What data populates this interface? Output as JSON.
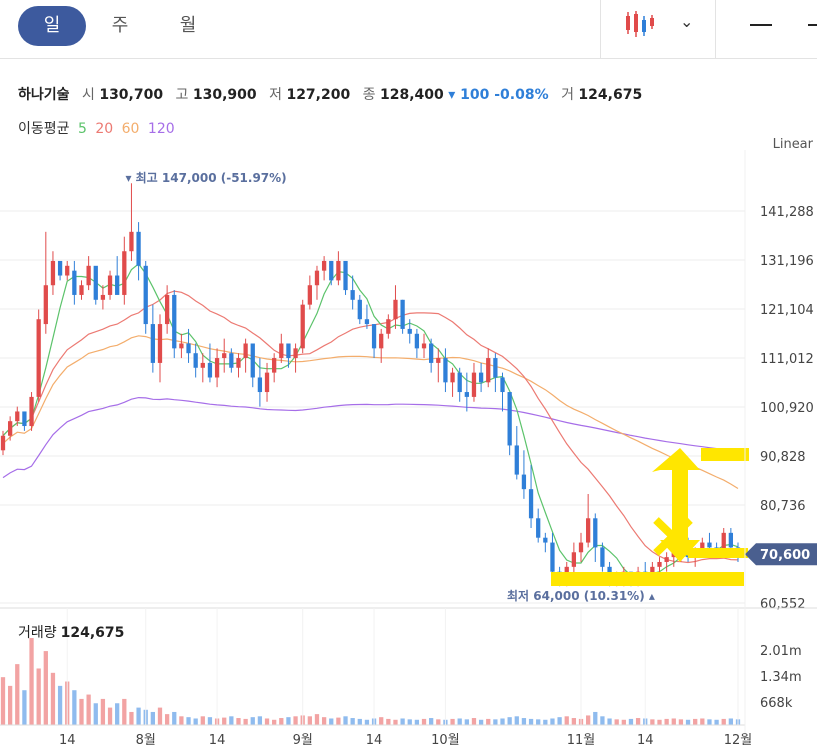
{
  "tabs": {
    "day": "일",
    "week": "주",
    "month": "월"
  },
  "stock": {
    "name": "하나기술",
    "open_label": "시",
    "open": "130,700",
    "high_label": "고",
    "high": "130,900",
    "low_label": "저",
    "low": "127,200",
    "close_label": "종",
    "close": "128,400",
    "change": "▾ 100 -0.08%",
    "volume_label": "거",
    "volume": "124,675"
  },
  "moving_avg": {
    "label": "이동평균",
    "p5": "5",
    "p20": "20",
    "p60": "60",
    "p120": "120"
  },
  "scale_label": "Linear",
  "annotations": {
    "high": "▾ 최고 147,000 (-51.97%)",
    "low": "최저 64,000 (10.31%) ▴"
  },
  "current_price": "70,600",
  "volume_panel": {
    "label": "거래량",
    "value": "124,675",
    "ticks": [
      "2.01m",
      "1.34m",
      "668k"
    ]
  },
  "colors": {
    "up": "#e04b4b",
    "down": "#2f7fd8",
    "ma5": "#5cc36b",
    "ma20": "#ec7a73",
    "ma60": "#f3ad6c",
    "ma120": "#a66ee8",
    "highlight": "#ffe600"
  },
  "chart_data": {
    "type": "candlestick",
    "y_ticks": [
      "141,288",
      "131,196",
      "121,104",
      "111,012",
      "100,920",
      "90,828",
      "80,736",
      "60,552"
    ],
    "y_tick_values": [
      141288,
      131196,
      121104,
      111012,
      100920,
      90828,
      80736,
      60552
    ],
    "ylim": [
      56000,
      150000
    ],
    "x_ticks": [
      "14",
      "8월",
      "14",
      "9월",
      "14",
      "10월",
      "11월",
      "14",
      "12월"
    ],
    "x_tick_index": [
      9,
      20,
      30,
      42,
      52,
      62,
      81,
      90,
      103
    ],
    "candles": [
      [
        92,
        96,
        91,
        95
      ],
      [
        95,
        99,
        94,
        98
      ],
      [
        98,
        101,
        97,
        100
      ],
      [
        100,
        100,
        96,
        97
      ],
      [
        97,
        104,
        96,
        103
      ],
      [
        103,
        121,
        102,
        119
      ],
      [
        118,
        137,
        116,
        126
      ],
      [
        126,
        133,
        124,
        131
      ],
      [
        131,
        130,
        127,
        128
      ],
      [
        128,
        131,
        127,
        130
      ],
      [
        129,
        131,
        122,
        124
      ],
      [
        124,
        127,
        123,
        126
      ],
      [
        126,
        132,
        125,
        130
      ],
      [
        130,
        129,
        122,
        123
      ],
      [
        123,
        126,
        121,
        124
      ],
      [
        124,
        129,
        123,
        128
      ],
      [
        128,
        132,
        126,
        124
      ],
      [
        124,
        136,
        122,
        133
      ],
      [
        133,
        147,
        131,
        137
      ],
      [
        137,
        139,
        127,
        130
      ],
      [
        130,
        131,
        116,
        118
      ],
      [
        118,
        122,
        108,
        110
      ],
      [
        110,
        120,
        106,
        118
      ],
      [
        118,
        126,
        116,
        124
      ],
      [
        124,
        125,
        111,
        113
      ],
      [
        113,
        116,
        111,
        114
      ],
      [
        114,
        117,
        110,
        112
      ],
      [
        112,
        114,
        107,
        109
      ],
      [
        109,
        112,
        106,
        110
      ],
      [
        110,
        114,
        106,
        107
      ],
      [
        107,
        113,
        105,
        111
      ],
      [
        111,
        115,
        108,
        112
      ],
      [
        112,
        113,
        108,
        109
      ],
      [
        109,
        112,
        107,
        111
      ],
      [
        111,
        115,
        108,
        114
      ],
      [
        114,
        114,
        105,
        107
      ],
      [
        107,
        111,
        101,
        104
      ],
      [
        104,
        110,
        102,
        108
      ],
      [
        108,
        112,
        106,
        111
      ],
      [
        111,
        116,
        110,
        114
      ],
      [
        114,
        114,
        109,
        111
      ],
      [
        111,
        114,
        108,
        113
      ],
      [
        113,
        123,
        112,
        122
      ],
      [
        122,
        128,
        121,
        126
      ],
      [
        126,
        130,
        123,
        129
      ],
      [
        129,
        132,
        127,
        131
      ],
      [
        131,
        131,
        126,
        127
      ],
      [
        127,
        133,
        126,
        131
      ],
      [
        131,
        130,
        124,
        125
      ],
      [
        125,
        128,
        121,
        123
      ],
      [
        123,
        124,
        118,
        119
      ],
      [
        119,
        122,
        117,
        118
      ],
      [
        118,
        118,
        111,
        113
      ],
      [
        113,
        117,
        110,
        116
      ],
      [
        116,
        120,
        115,
        119
      ],
      [
        119,
        126,
        117,
        123
      ],
      [
        123,
        123,
        116,
        117
      ],
      [
        117,
        119,
        114,
        116
      ],
      [
        116,
        117,
        111,
        113
      ],
      [
        113,
        116,
        111,
        114
      ],
      [
        114,
        115,
        108,
        110
      ],
      [
        110,
        113,
        106,
        111
      ],
      [
        111,
        113,
        104,
        106
      ],
      [
        106,
        109,
        103,
        108
      ],
      [
        108,
        109,
        102,
        104
      ],
      [
        104,
        108,
        100,
        103
      ],
      [
        103,
        110,
        102,
        108
      ],
      [
        108,
        110,
        104,
        106
      ],
      [
        106,
        113,
        105,
        111
      ],
      [
        111,
        112,
        104,
        107
      ],
      [
        107,
        108,
        100,
        104
      ],
      [
        104,
        104,
        91,
        93
      ],
      [
        93,
        97,
        86,
        87
      ],
      [
        87,
        92,
        82,
        84
      ],
      [
        84,
        89,
        76,
        78
      ],
      [
        78,
        80,
        73,
        74
      ],
      [
        74,
        75,
        71,
        73
      ],
      [
        73,
        75,
        66,
        67
      ],
      [
        67,
        68,
        64,
        65
      ],
      [
        65,
        69,
        64,
        68
      ],
      [
        68,
        73,
        66,
        71
      ],
      [
        71,
        75,
        69,
        73
      ],
      [
        73,
        83,
        72,
        78
      ],
      [
        78,
        79,
        69,
        72
      ],
      [
        72,
        73,
        67,
        68
      ],
      [
        68,
        69,
        64,
        65
      ],
      [
        65,
        67,
        64,
        66
      ],
      [
        66,
        68,
        64,
        67
      ],
      [
        67,
        67,
        64,
        65
      ],
      [
        65,
        68,
        64,
        67
      ],
      [
        67,
        69,
        65,
        66
      ],
      [
        66,
        69,
        65,
        68
      ],
      [
        68,
        70,
        66,
        69
      ],
      [
        69,
        71,
        67,
        70
      ],
      [
        70,
        72,
        68,
        71
      ],
      [
        71,
        73,
        69,
        72
      ],
      [
        72,
        74,
        69,
        70
      ],
      [
        70,
        72,
        68,
        71
      ],
      [
        71,
        74,
        70,
        73
      ],
      [
        73,
        75,
        71,
        72
      ],
      [
        72,
        73,
        70,
        71
      ],
      [
        71,
        76,
        70,
        75
      ],
      [
        75,
        76,
        71,
        72
      ],
      [
        72,
        73,
        69,
        70.6
      ]
    ],
    "volume": [
      1.1,
      0.9,
      1.4,
      0.8,
      2.0,
      1.3,
      1.7,
      1.2,
      0.9,
      1.0,
      0.8,
      0.6,
      0.7,
      0.5,
      0.6,
      0.4,
      0.5,
      0.6,
      0.3,
      0.4,
      0.35,
      0.3,
      0.4,
      0.25,
      0.3,
      0.2,
      0.18,
      0.15,
      0.2,
      0.18,
      0.15,
      0.17,
      0.2,
      0.16,
      0.14,
      0.18,
      0.2,
      0.15,
      0.12,
      0.16,
      0.18,
      0.2,
      0.22,
      0.2,
      0.25,
      0.18,
      0.15,
      0.17,
      0.2,
      0.16,
      0.14,
      0.12,
      0.15,
      0.18,
      0.14,
      0.12,
      0.15,
      0.13,
      0.12,
      0.14,
      0.16,
      0.13,
      0.12,
      0.14,
      0.15,
      0.13,
      0.16,
      0.12,
      0.14,
      0.13,
      0.15,
      0.18,
      0.2,
      0.16,
      0.14,
      0.13,
      0.12,
      0.15,
      0.18,
      0.2,
      0.16,
      0.14,
      0.22,
      0.3,
      0.2,
      0.15,
      0.13,
      0.12,
      0.14,
      0.16,
      0.15,
      0.13,
      0.12,
      0.14,
      0.15,
      0.13,
      0.12,
      0.14,
      0.15,
      0.13,
      0.12,
      0.14,
      0.15,
      0.13
    ],
    "vol_max": 2.3
  }
}
